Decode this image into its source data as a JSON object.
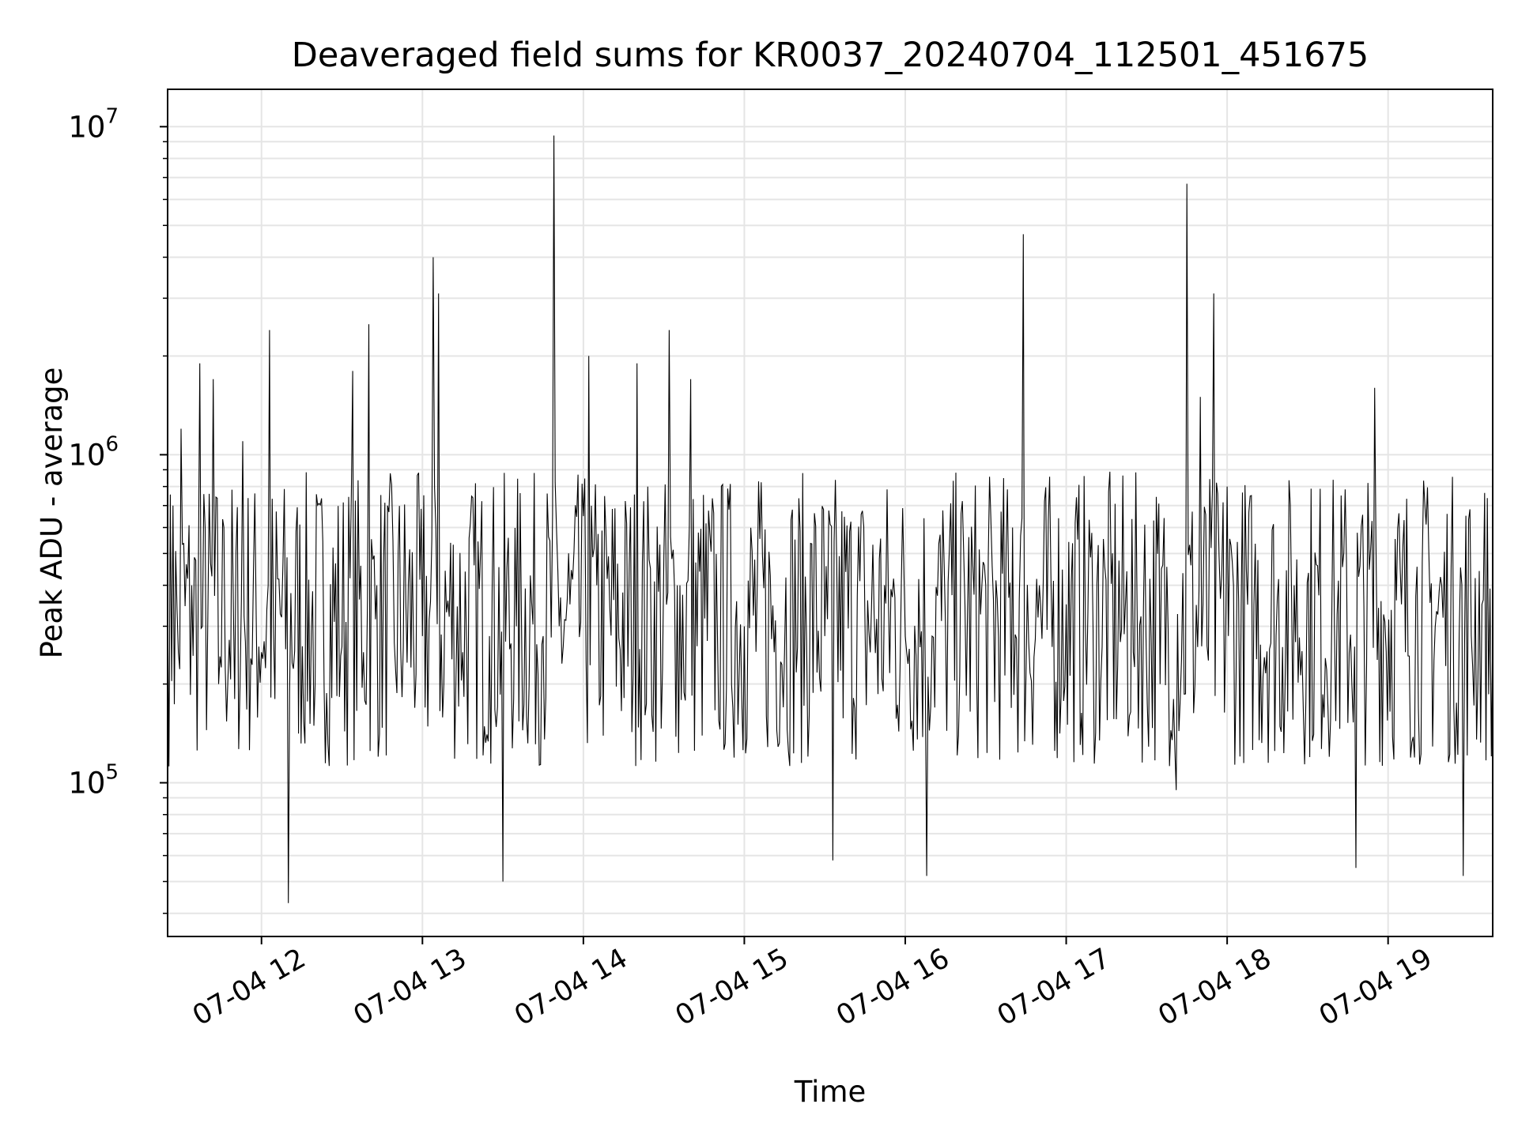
{
  "chart_data": {
    "type": "line",
    "title": "Deaveraged field sums for KR0037_20240704_112501_451675",
    "xlabel": "Time",
    "ylabel": "Peak ADU - average",
    "yscale": "log",
    "ylim": [
      34000,
      13000000
    ],
    "xlim": [
      "2024-07-04T11:25:00",
      "2024-07-04T19:39:00"
    ],
    "grid": true,
    "line_color": "#000000",
    "grid_color": "#e5e5e5",
    "x_ticks": [
      {
        "value": "2024-07-04T12:00:00",
        "label": "07-04 12"
      },
      {
        "value": "2024-07-04T13:00:00",
        "label": "07-04 13"
      },
      {
        "value": "2024-07-04T14:00:00",
        "label": "07-04 14"
      },
      {
        "value": "2024-07-04T15:00:00",
        "label": "07-04 15"
      },
      {
        "value": "2024-07-04T16:00:00",
        "label": "07-04 16"
      },
      {
        "value": "2024-07-04T17:00:00",
        "label": "07-04 17"
      },
      {
        "value": "2024-07-04T18:00:00",
        "label": "07-04 18"
      },
      {
        "value": "2024-07-04T19:00:00",
        "label": "07-04 19"
      }
    ],
    "y_ticks": [
      {
        "value": 100000,
        "base": "10",
        "exp": "5"
      },
      {
        "value": 1000000,
        "base": "10",
        "exp": "6"
      },
      {
        "value": 10000000,
        "base": "10",
        "exp": "7"
      }
    ],
    "series": [
      {
        "x": [
          "2024-07-04T11:25:00",
          "2024-07-04T11:27:00",
          "2024-07-04T11:29:00",
          "2024-07-04T11:30:00",
          "2024-07-04T11:34:00",
          "2024-07-04T11:37:00",
          "2024-07-04T11:38:00",
          "2024-07-04T11:42:00",
          "2024-07-04T11:44:00",
          "2024-07-04T11:46:00",
          "2024-07-04T11:50:00",
          "2024-07-04T11:53:00",
          "2024-07-04T12:00:00",
          "2024-07-04T12:03:00",
          "2024-07-04T12:05:00",
          "2024-07-04T12:10:00",
          "2024-07-04T12:20:00",
          "2024-07-04T12:30:00",
          "2024-07-04T12:34:00",
          "2024-07-04T12:38:00",
          "2024-07-04T12:40:00",
          "2024-07-04T12:43:00",
          "2024-07-04T12:50:00",
          "2024-07-04T13:00:00",
          "2024-07-04T13:04:00",
          "2024-07-04T13:05:00",
          "2024-07-04T13:06:00",
          "2024-07-04T13:08:00",
          "2024-07-04T13:15:00",
          "2024-07-04T13:25:00",
          "2024-07-04T13:30:00",
          "2024-07-04T13:35:00",
          "2024-07-04T13:45:00",
          "2024-07-04T13:49:00",
          "2024-07-04T13:51:00",
          "2024-07-04T13:55:00",
          "2024-07-04T14:00:00",
          "2024-07-04T14:02:00",
          "2024-07-04T14:05:00",
          "2024-07-04T14:20:00",
          "2024-07-04T14:25:00",
          "2024-07-04T14:32:00",
          "2024-07-04T14:35:00",
          "2024-07-04T14:40:00",
          "2024-07-04T14:50:00",
          "2024-07-04T15:00:00",
          "2024-07-04T15:15:00",
          "2024-07-04T15:30:00",
          "2024-07-04T15:33:00",
          "2024-07-04T15:45:00",
          "2024-07-04T16:00:00",
          "2024-07-04T16:08:00",
          "2024-07-04T16:10:00",
          "2024-07-04T16:15:00",
          "2024-07-04T16:30:00",
          "2024-07-04T16:40:00",
          "2024-07-04T16:44:00",
          "2024-07-04T16:50:00",
          "2024-07-04T17:00:00",
          "2024-07-04T17:10:00",
          "2024-07-04T17:25:00",
          "2024-07-04T17:35:00",
          "2024-07-04T17:40:00",
          "2024-07-04T17:41:00",
          "2024-07-04T17:45:00",
          "2024-07-04T17:50:00",
          "2024-07-04T17:55:00",
          "2024-07-04T18:00:00",
          "2024-07-04T18:10:00",
          "2024-07-04T18:25:00",
          "2024-07-04T18:40:00",
          "2024-07-04T18:48:00",
          "2024-07-04T18:55:00",
          "2024-07-04T19:05:00",
          "2024-07-04T19:20:00",
          "2024-07-04T19:28:00",
          "2024-07-04T19:35:00",
          "2024-07-04T19:39:00"
        ],
        "y": [
          350000,
          700000,
          250000,
          1200000,
          400000,
          1900000,
          300000,
          1700000,
          200000,
          600000,
          180000,
          1100000,
          250000,
          2400000,
          180000,
          43000,
          200000,
          260000,
          1800000,
          250000,
          2500000,
          400000,
          220000,
          280000,
          4000000,
          600000,
          3100000,
          200000,
          250000,
          280000,
          50000,
          300000,
          280000,
          9400000,
          300000,
          350000,
          650000,
          2000000,
          400000,
          1900000,
          450000,
          2400000,
          400000,
          1700000,
          280000,
          300000,
          250000,
          280000,
          58000,
          300000,
          280000,
          52000,
          280000,
          300000,
          400000,
          600000,
          4700000,
          400000,
          350000,
          300000,
          250000,
          200000,
          180000,
          95000,
          6700000,
          1500000,
          3100000,
          800000,
          350000,
          400000,
          300000,
          55000,
          1600000,
          350000,
          400000,
          52000,
          350000,
          300000
        ]
      }
    ]
  }
}
